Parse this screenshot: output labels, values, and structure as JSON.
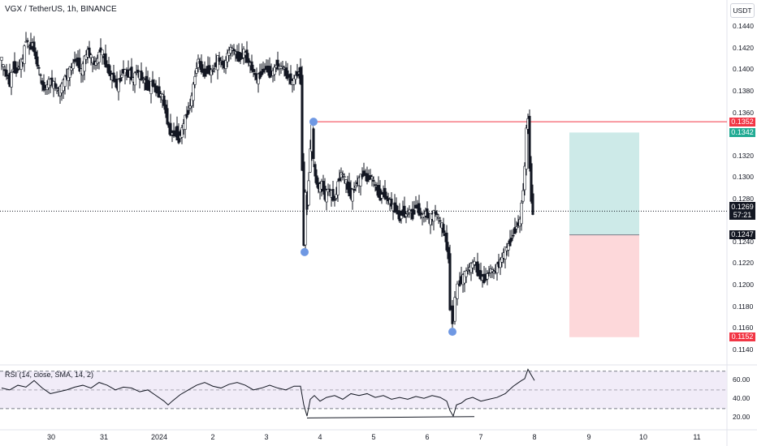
{
  "header": {
    "title": "VGX / TetherUS, 1h, BINANCE",
    "currency_button": "USDT"
  },
  "rsi_label": "RSI (14, close, SMA, 14, 2)",
  "price_axis": {
    "ticks": [
      "0.1440",
      "0.1420",
      "0.1400",
      "0.1380",
      "0.1360",
      "0.1320",
      "0.1300",
      "0.1280",
      "0.1240",
      "0.1220",
      "0.1200",
      "0.1180",
      "0.1160",
      "0.1140"
    ],
    "tick_values": [
      0.144,
      0.142,
      0.14,
      0.138,
      0.136,
      0.132,
      0.13,
      0.128,
      0.124,
      0.122,
      0.12,
      0.118,
      0.116,
      0.114
    ]
  },
  "rsi_axis": {
    "ticks": [
      "60.00",
      "40.00",
      "20.00"
    ],
    "tick_values": [
      60,
      40,
      20
    ],
    "upper_band": 70,
    "lower_band": 30,
    "mid": 50
  },
  "tags": {
    "resistance": {
      "text": "0.1352",
      "value": 0.1352,
      "color": "#f23645"
    },
    "take_profit": {
      "text": "0.1342",
      "value": 0.1342,
      "color": "#22ab94"
    },
    "current": {
      "text": "0.1269",
      "time": "57:21",
      "value": 0.1269,
      "color": "#131722"
    },
    "entry": {
      "text": "0.1247",
      "value": 0.1247,
      "color": "#131722"
    },
    "stop": {
      "text": "0.1152",
      "value": 0.1152,
      "color": "#f23645"
    }
  },
  "time_axis": {
    "labels": [
      "30",
      "31",
      "2024",
      "2",
      "3",
      "4",
      "5",
      "6",
      "7",
      "8",
      "9",
      "10",
      "11"
    ]
  },
  "colors": {
    "candle": "#131722",
    "profit_zone": "#b2dfdb",
    "loss_zone": "#fccbcd",
    "rsi_band": "#ede7f6",
    "marker": "#6f98e3",
    "rsi_line": "#131722"
  },
  "chart_data": {
    "type": "candlestick",
    "title": "VGX / TetherUS, 1h, BINANCE",
    "ylim": [
      0.113,
      0.145
    ],
    "key_levels": {
      "resistance": 0.1352,
      "take_profit": 0.1342,
      "entry": 0.1247,
      "stop_loss": 0.1152,
      "last": 0.1269
    },
    "swing_points": [
      {
        "label": "low",
        "value": 0.1231
      },
      {
        "label": "high",
        "value": 0.1352
      },
      {
        "label": "low",
        "value": 0.1157
      }
    ],
    "price_path": [
      [
        0,
        0.1415
      ],
      [
        4,
        0.1402
      ],
      [
        8,
        0.1395
      ],
      [
        12,
        0.1388
      ],
      [
        16,
        0.1403
      ],
      [
        20,
        0.1398
      ],
      [
        24,
        0.1405
      ],
      [
        28,
        0.141
      ],
      [
        32,
        0.143
      ],
      [
        36,
        0.142
      ],
      [
        40,
        0.1425
      ],
      [
        44,
        0.141
      ],
      [
        48,
        0.14
      ],
      [
        52,
        0.1385
      ],
      [
        56,
        0.1382
      ],
      [
        60,
        0.139
      ],
      [
        64,
        0.1388
      ],
      [
        68,
        0.1385
      ],
      [
        72,
        0.138
      ],
      [
        76,
        0.1385
      ],
      [
        80,
        0.1392
      ],
      [
        84,
        0.1398
      ],
      [
        88,
        0.1402
      ],
      [
        92,
        0.141
      ],
      [
        96,
        0.1406
      ],
      [
        100,
        0.1398
      ],
      [
        104,
        0.141
      ],
      [
        108,
        0.1418
      ],
      [
        112,
        0.1412
      ],
      [
        116,
        0.1405
      ],
      [
        120,
        0.141
      ],
      [
        124,
        0.142
      ],
      [
        128,
        0.141
      ],
      [
        132,
        0.1402
      ],
      [
        136,
        0.1395
      ],
      [
        140,
        0.1392
      ],
      [
        144,
        0.1385
      ],
      [
        148,
        0.1392
      ],
      [
        152,
        0.14
      ],
      [
        156,
        0.1395
      ],
      [
        160,
        0.1398
      ],
      [
        164,
        0.139
      ],
      [
        168,
        0.14
      ],
      [
        172,
        0.1395
      ],
      [
        176,
        0.1392
      ],
      [
        180,
        0.1385
      ],
      [
        184,
        0.1384
      ],
      [
        188,
        0.1388
      ],
      [
        192,
        0.138
      ],
      [
        196,
        0.1378
      ],
      [
        200,
        0.1375
      ],
      [
        204,
        0.136
      ],
      [
        208,
        0.1345
      ],
      [
        212,
        0.134
      ],
      [
        216,
        0.1342
      ],
      [
        220,
        0.1335
      ],
      [
        224,
        0.1345
      ],
      [
        228,
        0.1355
      ],
      [
        232,
        0.1362
      ],
      [
        236,
        0.1375
      ],
      [
        240,
        0.1395
      ],
      [
        244,
        0.141
      ],
      [
        248,
        0.14
      ],
      [
        252,
        0.1396
      ],
      [
        256,
        0.14
      ],
      [
        260,
        0.1398
      ],
      [
        264,
        0.1402
      ],
      [
        268,
        0.141
      ],
      [
        272,
        0.1408
      ],
      [
        276,
        0.1402
      ],
      [
        280,
        0.1415
      ],
      [
        284,
        0.142
      ],
      [
        288,
        0.1418
      ],
      [
        292,
        0.1412
      ],
      [
        296,
        0.141
      ],
      [
        300,
        0.1418
      ],
      [
        304,
        0.141
      ],
      [
        308,
        0.1405
      ],
      [
        312,
        0.1398
      ],
      [
        316,
        0.1392
      ],
      [
        320,
        0.1395
      ],
      [
        324,
        0.14
      ],
      [
        328,
        0.1402
      ],
      [
        332,
        0.1396
      ],
      [
        336,
        0.1398
      ],
      [
        340,
        0.1405
      ],
      [
        344,
        0.1402
      ],
      [
        348,
        0.1404
      ],
      [
        352,
        0.1396
      ],
      [
        356,
        0.1392
      ],
      [
        360,
        0.1388
      ],
      [
        364,
        0.1395
      ],
      [
        368,
        0.1398
      ],
      [
        370,
        0.139
      ],
      [
        372,
        0.131
      ],
      [
        374,
        0.124
      ],
      [
        376,
        0.1285
      ],
      [
        378,
        0.127
      ],
      [
        380,
        0.13
      ],
      [
        382,
        0.133
      ],
      [
        384,
        0.135
      ],
      [
        386,
        0.1315
      ],
      [
        388,
        0.13
      ],
      [
        392,
        0.129
      ],
      [
        396,
        0.1295
      ],
      [
        400,
        0.1282
      ],
      [
        404,
        0.129
      ],
      [
        408,
        0.1285
      ],
      [
        412,
        0.1278
      ],
      [
        416,
        0.1295
      ],
      [
        420,
        0.1305
      ],
      [
        424,
        0.13
      ],
      [
        428,
        0.129
      ],
      [
        432,
        0.1283
      ],
      [
        436,
        0.129
      ],
      [
        440,
        0.1296
      ],
      [
        444,
        0.13
      ],
      [
        448,
        0.1305
      ],
      [
        452,
        0.1298
      ],
      [
        456,
        0.1302
      ],
      [
        460,
        0.1296
      ],
      [
        464,
        0.1288
      ],
      [
        468,
        0.1282
      ],
      [
        472,
        0.1286
      ],
      [
        476,
        0.128
      ],
      [
        480,
        0.1278
      ],
      [
        484,
        0.1272
      ],
      [
        488,
        0.127
      ],
      [
        492,
        0.1262
      ],
      [
        496,
        0.1268
      ],
      [
        500,
        0.1265
      ],
      [
        504,
        0.127
      ],
      [
        508,
        0.1264
      ],
      [
        512,
        0.1275
      ],
      [
        516,
        0.1268
      ],
      [
        520,
        0.1264
      ],
      [
        524,
        0.1268
      ],
      [
        528,
        0.1262
      ],
      [
        532,
        0.1265
      ],
      [
        536,
        0.1268
      ],
      [
        540,
        0.1262
      ],
      [
        544,
        0.1255
      ],
      [
        548,
        0.1245
      ],
      [
        552,
        0.1225
      ],
      [
        555,
        0.118
      ],
      [
        558,
        0.1165
      ],
      [
        561,
        0.119
      ],
      [
        564,
        0.12
      ],
      [
        568,
        0.1205
      ],
      [
        572,
        0.121
      ],
      [
        576,
        0.1215
      ],
      [
        580,
        0.1218
      ],
      [
        584,
        0.1222
      ],
      [
        588,
        0.1212
      ],
      [
        592,
        0.1208
      ],
      [
        596,
        0.1205
      ],
      [
        600,
        0.121
      ],
      [
        604,
        0.1215
      ],
      [
        608,
        0.1212
      ],
      [
        612,
        0.1218
      ],
      [
        616,
        0.1222
      ],
      [
        620,
        0.123
      ],
      [
        624,
        0.1235
      ],
      [
        628,
        0.124
      ],
      [
        632,
        0.1248
      ],
      [
        636,
        0.1255
      ],
      [
        640,
        0.126
      ],
      [
        642,
        0.1275
      ],
      [
        644,
        0.129
      ],
      [
        646,
        0.131
      ],
      [
        648,
        0.1345
      ],
      [
        650,
        0.1355
      ],
      [
        652,
        0.131
      ],
      [
        654,
        0.128
      ],
      [
        656,
        0.1269
      ]
    ],
    "rsi_path": [
      [
        0,
        52
      ],
      [
        10,
        50
      ],
      [
        20,
        55
      ],
      [
        30,
        53
      ],
      [
        40,
        60
      ],
      [
        50,
        52
      ],
      [
        60,
        46
      ],
      [
        70,
        48
      ],
      [
        80,
        50
      ],
      [
        90,
        53
      ],
      [
        100,
        55
      ],
      [
        110,
        52
      ],
      [
        120,
        58
      ],
      [
        130,
        55
      ],
      [
        140,
        50
      ],
      [
        150,
        53
      ],
      [
        160,
        52
      ],
      [
        170,
        48
      ],
      [
        180,
        50
      ],
      [
        190,
        44
      ],
      [
        200,
        38
      ],
      [
        205,
        34
      ],
      [
        210,
        38
      ],
      [
        220,
        45
      ],
      [
        230,
        50
      ],
      [
        240,
        55
      ],
      [
        250,
        58
      ],
      [
        260,
        54
      ],
      [
        270,
        52
      ],
      [
        280,
        56
      ],
      [
        290,
        58
      ],
      [
        300,
        55
      ],
      [
        310,
        50
      ],
      [
        320,
        52
      ],
      [
        330,
        55
      ],
      [
        340,
        52
      ],
      [
        350,
        50
      ],
      [
        360,
        54
      ],
      [
        368,
        54
      ],
      [
        372,
        34
      ],
      [
        376,
        22
      ],
      [
        380,
        40
      ],
      [
        385,
        44
      ],
      [
        392,
        38
      ],
      [
        400,
        42
      ],
      [
        410,
        44
      ],
      [
        420,
        40
      ],
      [
        430,
        46
      ],
      [
        440,
        44
      ],
      [
        450,
        46
      ],
      [
        460,
        42
      ],
      [
        470,
        44
      ],
      [
        480,
        40
      ],
      [
        490,
        42
      ],
      [
        500,
        40
      ],
      [
        510,
        43
      ],
      [
        520,
        41
      ],
      [
        530,
        44
      ],
      [
        540,
        42
      ],
      [
        548,
        38
      ],
      [
        552,
        28
      ],
      [
        556,
        22
      ],
      [
        560,
        34
      ],
      [
        566,
        36
      ],
      [
        572,
        40
      ],
      [
        580,
        42
      ],
      [
        590,
        38
      ],
      [
        600,
        40
      ],
      [
        610,
        42
      ],
      [
        620,
        46
      ],
      [
        630,
        54
      ],
      [
        640,
        60
      ],
      [
        644,
        62
      ],
      [
        648,
        72
      ],
      [
        652,
        66
      ],
      [
        656,
        60
      ]
    ]
  }
}
